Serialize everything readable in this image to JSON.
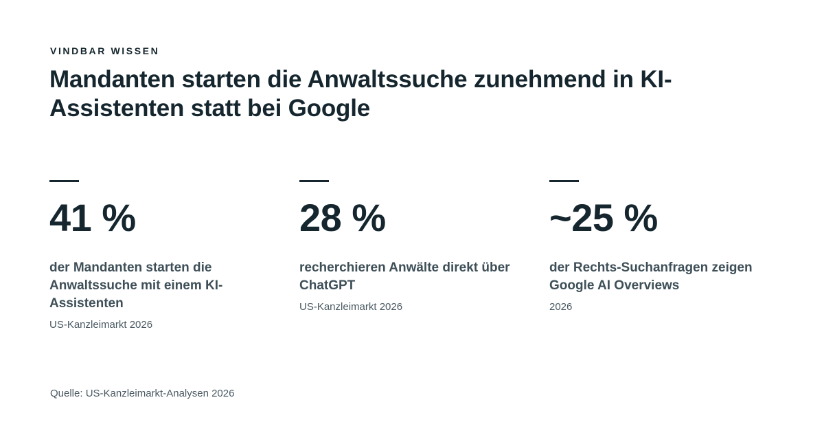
{
  "header": {
    "eyebrow": "VINDBAR WISSEN",
    "title": "Mandanten starten die Anwaltssuche zunehmend in KI-Assistenten statt bei Google"
  },
  "stats": [
    {
      "value": "41 %",
      "description": "der Mandanten starten die Anwaltssuche mit einem KI-Assistenten",
      "meta": "US-Kanzleimarkt 2026"
    },
    {
      "value": "28 %",
      "description": "recherchieren Anwälte direkt über ChatGPT",
      "meta": "US-Kanzleimarkt 2026"
    },
    {
      "value": "~25 %",
      "description": "der Rechts-Suchanfragen zeigen Google AI Overviews",
      "meta": "2026"
    }
  ],
  "footer": {
    "source": "Quelle: US-Kanzleimarkt-Analysen 2026"
  }
}
